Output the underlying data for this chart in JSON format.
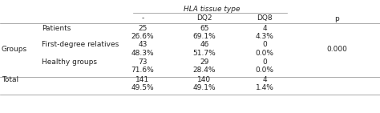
{
  "title": "HLA tissue type",
  "col_headers": [
    "-",
    "DQ2",
    "DQ8",
    "p"
  ],
  "row_groups": [
    {
      "group_label": "Groups",
      "subgroups": [
        {
          "label": "Patients",
          "values": [
            "25",
            "65",
            "4"
          ],
          "pct": [
            "26.6%",
            "69.1%",
            "4.3%"
          ]
        },
        {
          "label": "First-degree relatives",
          "values": [
            "43",
            "46",
            "0"
          ],
          "pct": [
            "48.3%",
            "51.7%",
            "0.0%"
          ]
        },
        {
          "label": "Healthy groups",
          "values": [
            "73",
            "29",
            "0"
          ],
          "pct": [
            "71.6%",
            "28.4%",
            "0.0%"
          ]
        }
      ],
      "p_value": "0.000"
    }
  ],
  "total": {
    "label": "Total",
    "values": [
      "141",
      "140",
      "4"
    ],
    "pct": [
      "49.5%",
      "49.1%",
      "1.4%"
    ]
  },
  "background_color": "#ffffff",
  "text_color": "#222222",
  "line_color": "#888888",
  "font_size": 6.5
}
